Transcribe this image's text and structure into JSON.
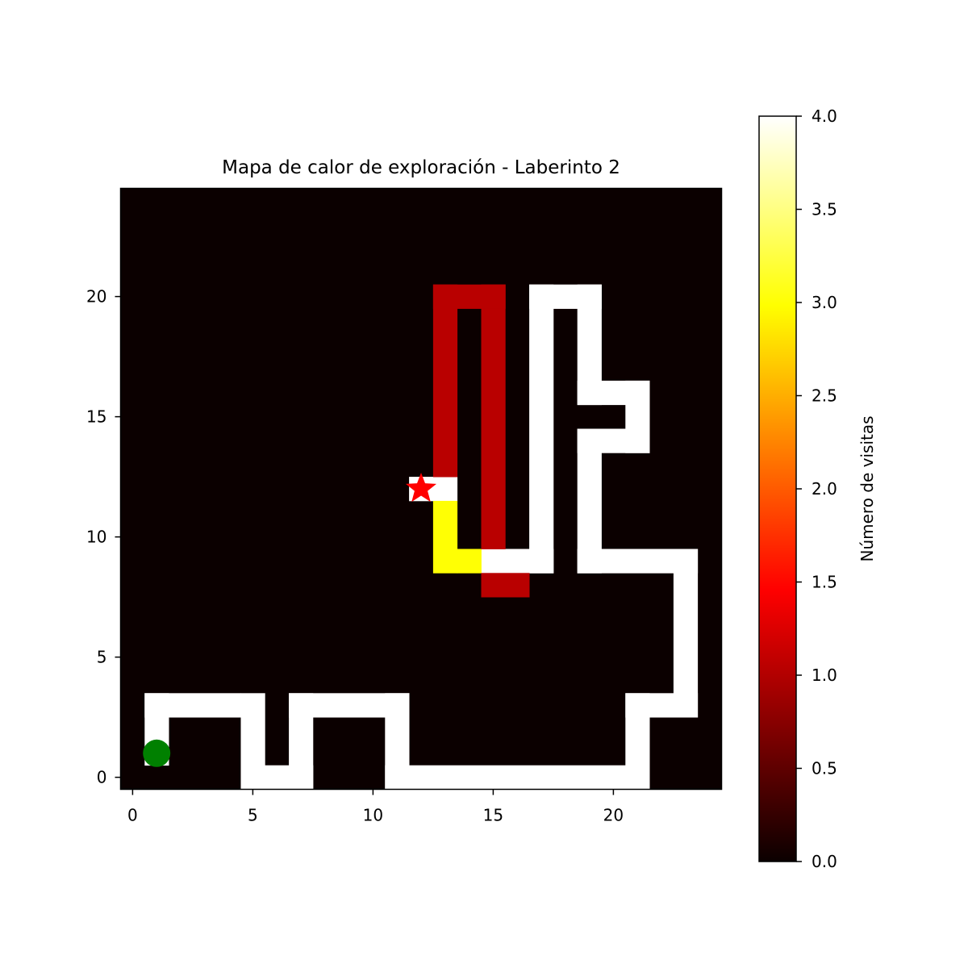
{
  "chart_data": {
    "type": "heatmap",
    "title": "Mapa de calor de exploración - Laberinto 2",
    "xlabel": "",
    "ylabel": "",
    "grid": false,
    "origin": "lower",
    "xlim": [
      -0.5,
      24.5
    ],
    "ylim": [
      -0.5,
      24.5
    ],
    "x_ticks": [
      0,
      5,
      10,
      15,
      20
    ],
    "y_ticks": [
      0,
      5,
      10,
      15,
      20
    ],
    "colormap": "hot",
    "colorbar": {
      "label": "Número de visitas",
      "min": 0.0,
      "max": 4.0,
      "ticks": [
        "0.0",
        "0.5",
        "1.0",
        "1.5",
        "2.0",
        "2.5",
        "3.0",
        "3.5",
        "4.0"
      ]
    },
    "background_value": 0,
    "cells": [
      {
        "value": 4,
        "x": [
          1,
          1
        ],
        "y": [
          1,
          3
        ]
      },
      {
        "value": 4,
        "x": [
          1,
          4
        ],
        "y": [
          3,
          3
        ]
      },
      {
        "value": 4,
        "x": [
          5,
          5
        ],
        "y": [
          0,
          3
        ]
      },
      {
        "value": 4,
        "x": [
          5,
          7
        ],
        "y": [
          0,
          0
        ]
      },
      {
        "value": 4,
        "x": [
          7,
          7
        ],
        "y": [
          0,
          3
        ]
      },
      {
        "value": 4,
        "x": [
          7,
          11
        ],
        "y": [
          3,
          3
        ]
      },
      {
        "value": 4,
        "x": [
          11,
          11
        ],
        "y": [
          0,
          3
        ]
      },
      {
        "value": 4,
        "x": [
          11,
          21
        ],
        "y": [
          0,
          0
        ]
      },
      {
        "value": 4,
        "x": [
          21,
          21
        ],
        "y": [
          0,
          3
        ]
      },
      {
        "value": 4,
        "x": [
          21,
          23
        ],
        "y": [
          3,
          3
        ]
      },
      {
        "value": 4,
        "x": [
          23,
          23
        ],
        "y": [
          3,
          9
        ]
      },
      {
        "value": 4,
        "x": [
          19,
          23
        ],
        "y": [
          9,
          9
        ]
      },
      {
        "value": 4,
        "x": [
          19,
          19
        ],
        "y": [
          9,
          14
        ]
      },
      {
        "value": 4,
        "x": [
          19,
          21
        ],
        "y": [
          14,
          14
        ]
      },
      {
        "value": 4,
        "x": [
          21,
          21
        ],
        "y": [
          14,
          16
        ]
      },
      {
        "value": 4,
        "x": [
          19,
          21
        ],
        "y": [
          16,
          16
        ]
      },
      {
        "value": 4,
        "x": [
          19,
          19
        ],
        "y": [
          16,
          20
        ]
      },
      {
        "value": 4,
        "x": [
          17,
          19
        ],
        "y": [
          20,
          20
        ]
      },
      {
        "value": 4,
        "x": [
          17,
          17
        ],
        "y": [
          9,
          20
        ]
      },
      {
        "value": 4,
        "x": [
          15,
          17
        ],
        "y": [
          9,
          9
        ]
      },
      {
        "value": 4,
        "x": [
          12,
          13
        ],
        "y": [
          12,
          12
        ]
      },
      {
        "value": 3,
        "x": [
          13,
          13
        ],
        "y": [
          9,
          11
        ]
      },
      {
        "value": 3,
        "x": [
          14,
          14
        ],
        "y": [
          9,
          9
        ]
      },
      {
        "value": 1,
        "x": [
          15,
          16
        ],
        "y": [
          8,
          8
        ]
      },
      {
        "value": 1,
        "x": [
          15,
          15
        ],
        "y": [
          10,
          20
        ]
      },
      {
        "value": 1,
        "x": [
          13,
          15
        ],
        "y": [
          20,
          20
        ]
      },
      {
        "value": 1,
        "x": [
          13,
          13
        ],
        "y": [
          13,
          20
        ]
      }
    ],
    "markers": [
      {
        "name": "start",
        "x": 1,
        "y": 1,
        "shape": "circle",
        "color": "#008000"
      },
      {
        "name": "goal",
        "x": 12,
        "y": 12,
        "shape": "star",
        "color": "#ff0000"
      }
    ]
  }
}
